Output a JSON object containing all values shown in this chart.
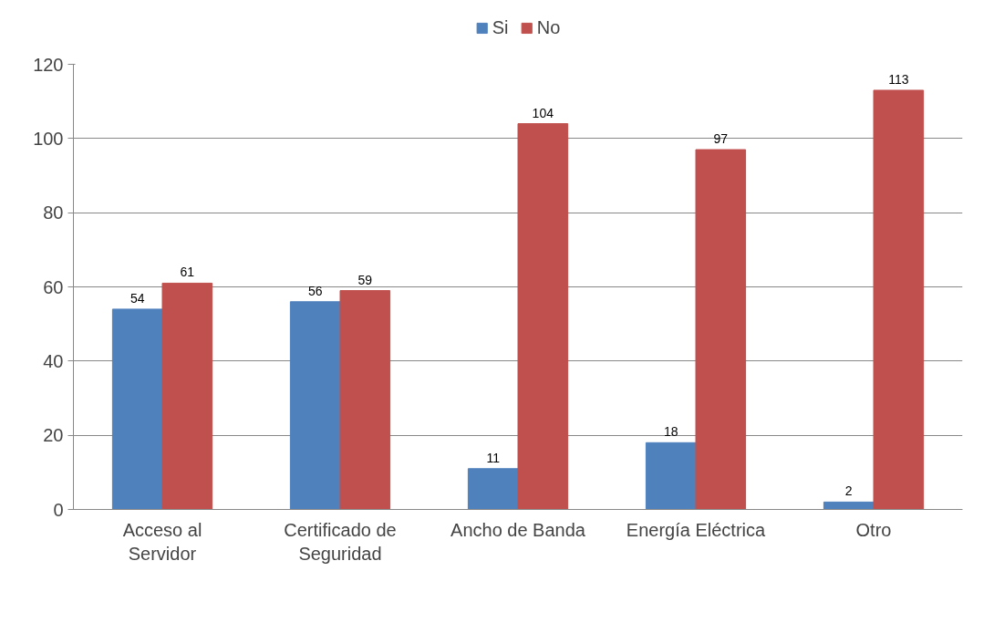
{
  "chart_data": {
    "type": "bar",
    "categories": [
      "Acceso al Servidor",
      "Certificado de Seguridad",
      "Ancho de Banda",
      "Energía Eléctrica",
      "Otro"
    ],
    "series": [
      {
        "name": "Si",
        "color": "#4f81bd",
        "values": [
          54,
          56,
          11,
          18,
          2
        ]
      },
      {
        "name": "No",
        "color": "#c0504d",
        "values": [
          61,
          59,
          104,
          97,
          113
        ]
      }
    ],
    "ylim": [
      0,
      120
    ],
    "yticks": [
      0,
      20,
      40,
      60,
      80,
      100,
      120
    ],
    "grid": "y",
    "legend": "top",
    "data_labels": true
  }
}
